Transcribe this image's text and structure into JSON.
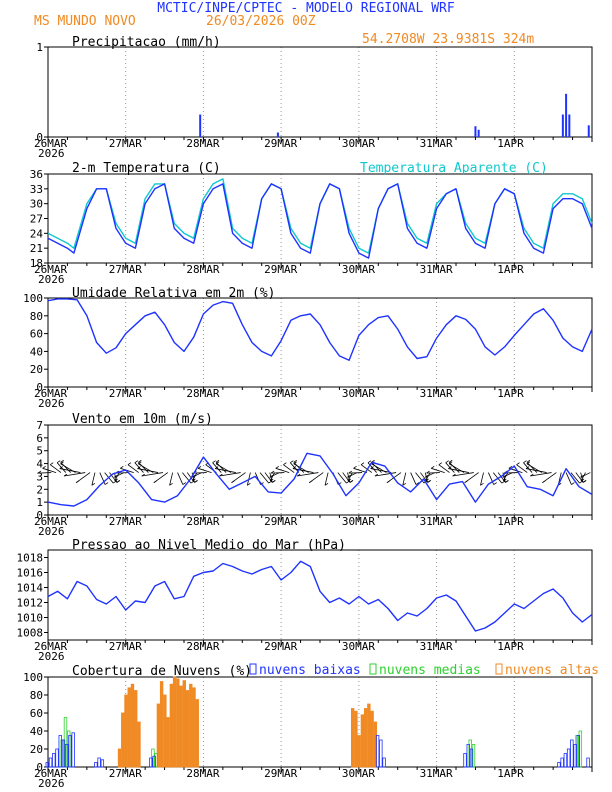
{
  "header": {
    "title": "MCTIC/INPE/CPTEC - MODELO REGIONAL WRF",
    "location": "MS MUNDO NOVO",
    "run": "26/03/2026 00Z",
    "coords": "54.2708W 23.9381S 324m"
  },
  "colors": {
    "blue": "#1f33ff",
    "orange": "#f08a24",
    "cyan": "#10c8cc",
    "green": "#2ed12e",
    "grid": "#999999"
  },
  "x_axis": {
    "day_labels": [
      "26MAR",
      "27MAR",
      "28MAR",
      "29MAR",
      "30MAR",
      "31MAR",
      "1APR"
    ],
    "year_label": "2026",
    "hours": 168
  },
  "chart_data": [
    {
      "type": "bar",
      "id": "precip",
      "title": "Precipitacao (mm/h)",
      "ylim": [
        0,
        1
      ],
      "yticks": [
        "0",
        "1"
      ],
      "bars": [
        {
          "h": 47,
          "v": 0.25
        },
        {
          "h": 71,
          "v": 0.05
        },
        {
          "h": 132,
          "v": 0.12
        },
        {
          "h": 133,
          "v": 0.08
        },
        {
          "h": 159,
          "v": 0.25
        },
        {
          "h": 160,
          "v": 0.48
        },
        {
          "h": 161,
          "v": 0.25
        },
        {
          "h": 167,
          "v": 0.13
        }
      ]
    },
    {
      "type": "line",
      "id": "temp",
      "title": "2-m Temperatura (C)",
      "legend": "Temperatura Aparente (C)",
      "ylim": [
        18,
        36
      ],
      "yticks": [
        "18",
        "21",
        "24",
        "27",
        "30",
        "33",
        "36"
      ],
      "series": [
        {
          "name": "Temperatura",
          "color": "blue",
          "x": [
            0,
            3,
            6,
            8,
            12,
            15,
            18,
            21,
            24,
            27,
            30,
            33,
            36,
            39,
            42,
            45,
            48,
            51,
            54,
            57,
            60,
            63,
            66,
            69,
            72,
            75,
            78,
            81,
            84,
            87,
            90,
            93,
            96,
            99,
            102,
            105,
            108,
            111,
            114,
            117,
            120,
            123,
            126,
            129,
            132,
            135,
            138,
            141,
            144,
            147,
            150,
            153,
            156,
            159,
            162,
            165,
            168
          ],
          "y": [
            23,
            22,
            21,
            20,
            29,
            33,
            33,
            25,
            22,
            21,
            30,
            33,
            34,
            25,
            23,
            22,
            30,
            33,
            34,
            24,
            22,
            21,
            31,
            34,
            33,
            24,
            21,
            20,
            30,
            34,
            33,
            24,
            20,
            19,
            29,
            33,
            34,
            25,
            22,
            21,
            29,
            32,
            33,
            25,
            22,
            21,
            30,
            33,
            32,
            24,
            21,
            20,
            29,
            31,
            31,
            30,
            25
          ]
        },
        {
          "name": "Temperatura Aparente",
          "color": "cyan",
          "x": [
            0,
            3,
            6,
            8,
            12,
            15,
            18,
            21,
            24,
            27,
            30,
            33,
            36,
            39,
            42,
            45,
            48,
            51,
            54,
            57,
            60,
            63,
            66,
            69,
            72,
            75,
            78,
            81,
            84,
            87,
            90,
            93,
            96,
            99,
            102,
            105,
            108,
            111,
            114,
            117,
            120,
            123,
            126,
            129,
            132,
            135,
            138,
            141,
            144,
            147,
            150,
            153,
            156,
            159,
            162,
            165,
            168
          ],
          "y": [
            24,
            23,
            22,
            21,
            30,
            33,
            33,
            26,
            23,
            22,
            31,
            34,
            34,
            26,
            24,
            23,
            31,
            34,
            35,
            25,
            23,
            22,
            31,
            34,
            33,
            25,
            22,
            21,
            30,
            34,
            33,
            25,
            21,
            20,
            29,
            33,
            34,
            26,
            23,
            22,
            30,
            32,
            33,
            26,
            23,
            22,
            30,
            33,
            32,
            25,
            22,
            21,
            30,
            32,
            32,
            31,
            26
          ]
        }
      ]
    },
    {
      "type": "line",
      "id": "rh",
      "title": "Umidade Relativa em 2m (%)",
      "ylim": [
        0,
        100
      ],
      "yticks": [
        "0",
        "20",
        "40",
        "60",
        "80",
        "100"
      ],
      "series": [
        {
          "name": "UR",
          "color": "blue",
          "x": [
            0,
            3,
            6,
            9,
            12,
            15,
            18,
            21,
            24,
            27,
            30,
            33,
            36,
            39,
            42,
            45,
            48,
            51,
            54,
            57,
            60,
            63,
            66,
            69,
            72,
            75,
            78,
            81,
            84,
            87,
            90,
            93,
            96,
            99,
            102,
            105,
            108,
            111,
            114,
            117,
            120,
            123,
            126,
            129,
            132,
            135,
            138,
            141,
            144,
            147,
            150,
            153,
            156,
            159,
            162,
            165,
            168
          ],
          "y": [
            97,
            99,
            99,
            98,
            80,
            50,
            38,
            44,
            60,
            70,
            80,
            84,
            70,
            50,
            40,
            56,
            82,
            92,
            96,
            94,
            70,
            50,
            40,
            35,
            52,
            75,
            80,
            82,
            70,
            50,
            35,
            30,
            58,
            70,
            78,
            80,
            65,
            45,
            32,
            34,
            55,
            70,
            80,
            76,
            65,
            45,
            36,
            45,
            58,
            70,
            82,
            88,
            75,
            55,
            45,
            40,
            65
          ]
        }
      ]
    },
    {
      "type": "line",
      "id": "wind",
      "title": "Vento em 10m (m/s)",
      "ylim": [
        0,
        7
      ],
      "yticks": [
        "0",
        "1",
        "2",
        "3",
        "4",
        "5",
        "6",
        "7"
      ],
      "series": [
        {
          "name": "Vento",
          "color": "blue",
          "x": [
            0,
            4,
            8,
            12,
            16,
            20,
            24,
            28,
            32,
            36,
            40,
            44,
            48,
            52,
            56,
            60,
            64,
            68,
            72,
            76,
            80,
            84,
            88,
            92,
            96,
            100,
            104,
            108,
            112,
            116,
            120,
            124,
            128,
            132,
            136,
            140,
            144,
            148,
            152,
            156,
            160,
            164,
            168
          ],
          "y": [
            1,
            0.8,
            0.7,
            1.2,
            2.3,
            3.2,
            3.5,
            2.5,
            1.2,
            1,
            1.5,
            2.8,
            4.5,
            3.2,
            2,
            2.5,
            3,
            1.8,
            1.7,
            2.8,
            4.8,
            4.6,
            3.2,
            1.5,
            2.5,
            4.1,
            3.8,
            2.5,
            1.8,
            2.8,
            1.2,
            2.4,
            2.6,
            1,
            2.4,
            3,
            3.8,
            2.2,
            2,
            1.5,
            3.6,
            2.2,
            1.6
          ]
        }
      ]
    },
    {
      "type": "line",
      "id": "pressure",
      "title": "Pressao ao Nivel Medio do Mar (hPa)",
      "ylim": [
        1007,
        1019
      ],
      "yticks": [
        "1008",
        "1010",
        "1012",
        "1014",
        "1016",
        "1018"
      ],
      "series": [
        {
          "name": "Pressao",
          "color": "blue",
          "x": [
            0,
            3,
            6,
            9,
            12,
            15,
            18,
            21,
            24,
            27,
            30,
            33,
            36,
            39,
            42,
            45,
            48,
            51,
            54,
            57,
            60,
            63,
            66,
            69,
            72,
            75,
            78,
            81,
            84,
            87,
            90,
            93,
            96,
            99,
            102,
            105,
            108,
            111,
            114,
            117,
            120,
            123,
            126,
            129,
            132,
            135,
            138,
            141,
            144,
            147,
            150,
            153,
            156,
            159,
            162,
            165,
            168
          ],
          "y": [
            1012.8,
            1013.5,
            1012.5,
            1014.8,
            1014.2,
            1012.4,
            1011.8,
            1012.8,
            1011,
            1012.2,
            1012,
            1014.2,
            1014.8,
            1012.5,
            1012.8,
            1015.5,
            1016,
            1016.2,
            1017.2,
            1016.8,
            1016.2,
            1015.8,
            1016.4,
            1016.8,
            1015,
            1016,
            1017.5,
            1016.8,
            1013.5,
            1012,
            1012.6,
            1011.8,
            1012.8,
            1011.8,
            1012.4,
            1011.2,
            1009.6,
            1010.6,
            1010.2,
            1011.2,
            1012.6,
            1013,
            1012.2,
            1010.2,
            1008.2,
            1008.6,
            1009.4,
            1010.6,
            1011.8,
            1011.2,
            1012.2,
            1013.2,
            1013.8,
            1012.6,
            1010.6,
            1009.4,
            1010.4
          ]
        }
      ]
    },
    {
      "type": "bar",
      "id": "clouds",
      "title": "Cobertura de Nuvens (%)",
      "legend": [
        "nuvens baixas",
        "nuvens medias",
        "nuvens altas"
      ],
      "ylim": [
        0,
        100
      ],
      "yticks": [
        "0",
        "20",
        "40",
        "60",
        "80",
        "100"
      ],
      "high": [
        {
          "h": 22,
          "v": 20
        },
        {
          "h": 23,
          "v": 60
        },
        {
          "h": 24,
          "v": 80
        },
        {
          "h": 25,
          "v": 88
        },
        {
          "h": 26,
          "v": 92
        },
        {
          "h": 27,
          "v": 85
        },
        {
          "h": 28,
          "v": 50
        },
        {
          "h": 34,
          "v": 70
        },
        {
          "h": 35,
          "v": 95
        },
        {
          "h": 36,
          "v": 80
        },
        {
          "h": 37,
          "v": 55
        },
        {
          "h": 38,
          "v": 92
        },
        {
          "h": 39,
          "v": 100
        },
        {
          "h": 40,
          "v": 98
        },
        {
          "h": 41,
          "v": 90
        },
        {
          "h": 42,
          "v": 96
        },
        {
          "h": 43,
          "v": 85
        },
        {
          "h": 44,
          "v": 92
        },
        {
          "h": 45,
          "v": 88
        },
        {
          "h": 46,
          "v": 75
        },
        {
          "h": 94,
          "v": 65
        },
        {
          "h": 95,
          "v": 62
        },
        {
          "h": 96,
          "v": 35
        },
        {
          "h": 97,
          "v": 58
        },
        {
          "h": 98,
          "v": 65
        },
        {
          "h": 99,
          "v": 70
        },
        {
          "h": 100,
          "v": 62
        },
        {
          "h": 101,
          "v": 50
        }
      ],
      "medium": [
        {
          "h": 4,
          "v": 30
        },
        {
          "h": 5,
          "v": 55
        },
        {
          "h": 6,
          "v": 40
        },
        {
          "h": 32,
          "v": 20
        },
        {
          "h": 33,
          "v": 15
        },
        {
          "h": 130,
          "v": 30
        },
        {
          "h": 131,
          "v": 25
        },
        {
          "h": 163,
          "v": 35
        },
        {
          "h": 164,
          "v": 40
        }
      ],
      "low": [
        {
          "h": 0,
          "v": 5
        },
        {
          "h": 1,
          "v": 10
        },
        {
          "h": 2,
          "v": 15
        },
        {
          "h": 3,
          "v": 20
        },
        {
          "h": 4,
          "v": 35
        },
        {
          "h": 5,
          "v": 30
        },
        {
          "h": 6,
          "v": 25
        },
        {
          "h": 7,
          "v": 35
        },
        {
          "h": 8,
          "v": 38
        },
        {
          "h": 15,
          "v": 5
        },
        {
          "h": 16,
          "v": 10
        },
        {
          "h": 17,
          "v": 8
        },
        {
          "h": 32,
          "v": 10
        },
        {
          "h": 33,
          "v": 12
        },
        {
          "h": 102,
          "v": 35
        },
        {
          "h": 103,
          "v": 30
        },
        {
          "h": 104,
          "v": 10
        },
        {
          "h": 129,
          "v": 15
        },
        {
          "h": 130,
          "v": 25
        },
        {
          "h": 131,
          "v": 20
        },
        {
          "h": 158,
          "v": 5
        },
        {
          "h": 159,
          "v": 10
        },
        {
          "h": 160,
          "v": 15
        },
        {
          "h": 161,
          "v": 20
        },
        {
          "h": 162,
          "v": 30
        },
        {
          "h": 163,
          "v": 25
        },
        {
          "h": 164,
          "v": 35
        },
        {
          "h": 167,
          "v": 10
        }
      ]
    }
  ]
}
